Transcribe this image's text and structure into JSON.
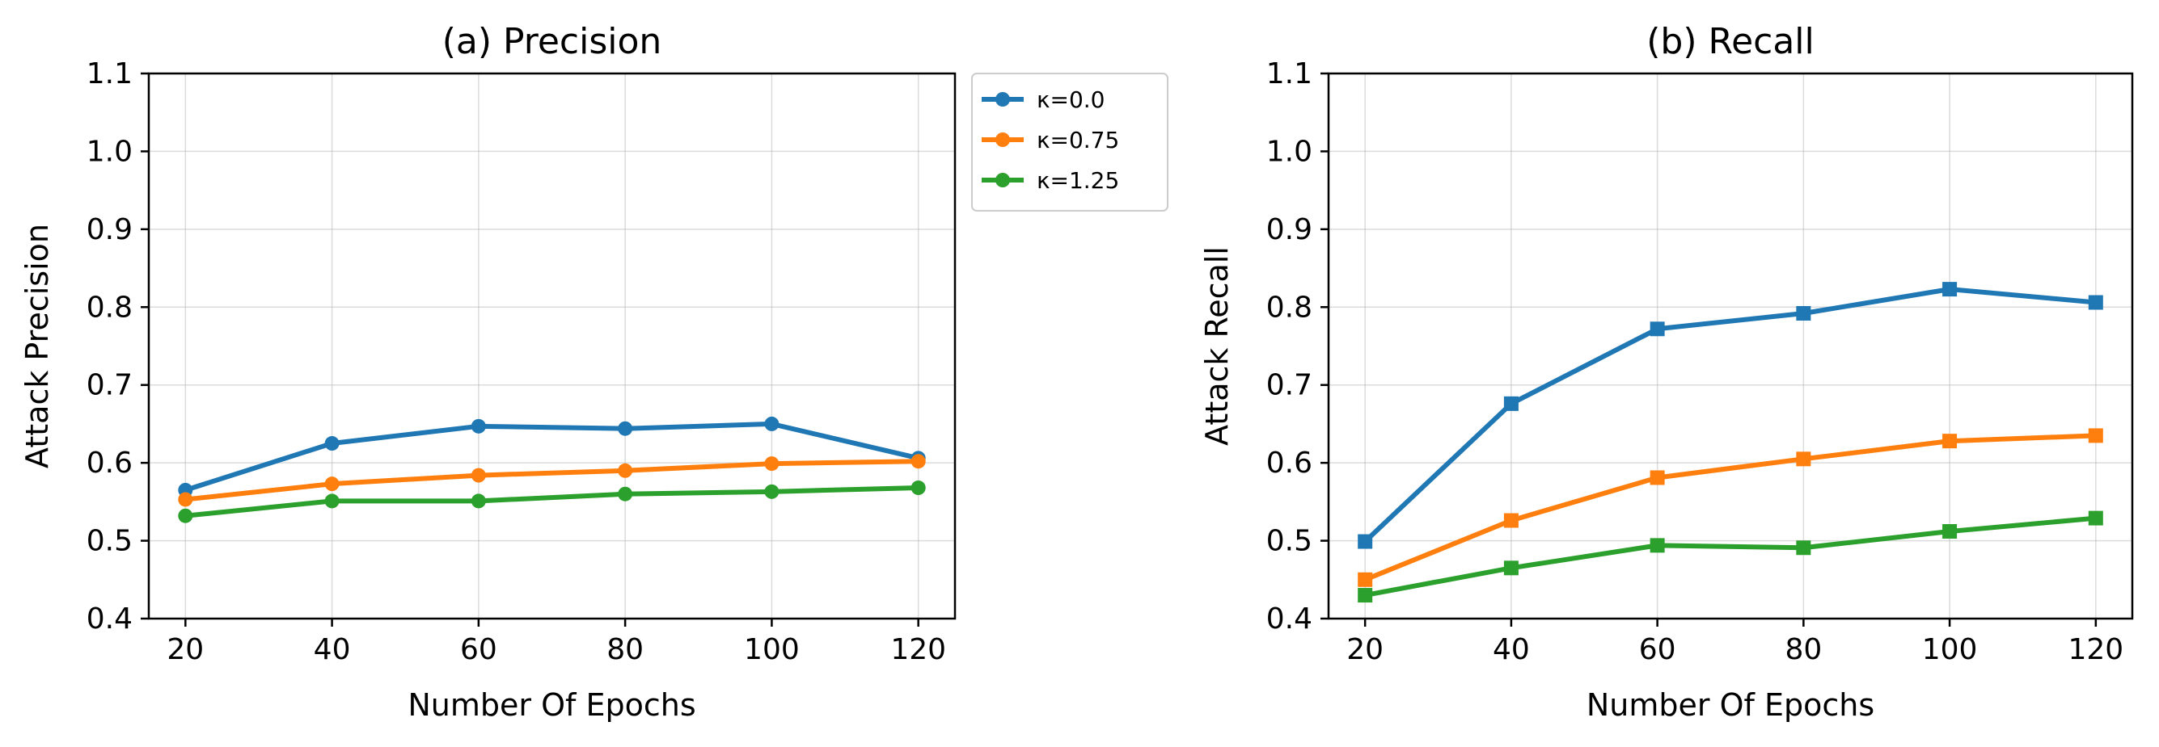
{
  "chart_data": [
    {
      "type": "line",
      "title": "(a) Precision",
      "xlabel": "Number Of Epochs",
      "ylabel": "Attack Precision",
      "x": [
        20,
        40,
        60,
        80,
        100,
        120
      ],
      "xticks": [
        "20",
        "40",
        "60",
        "80",
        "100",
        "120"
      ],
      "yticks": [
        "0.4",
        "0.5",
        "0.6",
        "0.7",
        "0.8",
        "0.9",
        "1.0",
        "1.1"
      ],
      "xlim": [
        15,
        125
      ],
      "ylim": [
        0.4,
        1.1
      ],
      "grid": true,
      "marker": "circle",
      "legend": "outside-top-right",
      "series": [
        {
          "name": "κ=0.0",
          "color": "#1f77b4",
          "values": [
            0.565,
            0.625,
            0.647,
            0.644,
            0.65,
            0.606
          ]
        },
        {
          "name": "κ=0.75",
          "color": "#ff7f0e",
          "values": [
            0.553,
            0.573,
            0.584,
            0.59,
            0.599,
            0.602
          ]
        },
        {
          "name": "κ=1.25",
          "color": "#2ca02c",
          "values": [
            0.532,
            0.551,
            0.551,
            0.56,
            0.563,
            0.568
          ]
        }
      ]
    },
    {
      "type": "line",
      "title": "(b) Recall",
      "xlabel": "Number Of Epochs",
      "ylabel": "Attack Recall",
      "x": [
        20,
        40,
        60,
        80,
        100,
        120
      ],
      "xticks": [
        "20",
        "40",
        "60",
        "80",
        "100",
        "120"
      ],
      "yticks": [
        "0.4",
        "0.5",
        "0.6",
        "0.7",
        "0.8",
        "0.9",
        "1.0",
        "1.1"
      ],
      "xlim": [
        15,
        125
      ],
      "ylim": [
        0.4,
        1.1
      ],
      "grid": true,
      "marker": "square",
      "series": [
        {
          "color": "#1f77b4",
          "values": [
            0.499,
            0.676,
            0.772,
            0.792,
            0.823,
            0.806
          ]
        },
        {
          "color": "#ff7f0e",
          "values": [
            0.45,
            0.526,
            0.581,
            0.605,
            0.628,
            0.635
          ]
        },
        {
          "color": "#2ca02c",
          "values": [
            0.43,
            0.465,
            0.494,
            0.491,
            0.512,
            0.529
          ]
        }
      ]
    }
  ]
}
